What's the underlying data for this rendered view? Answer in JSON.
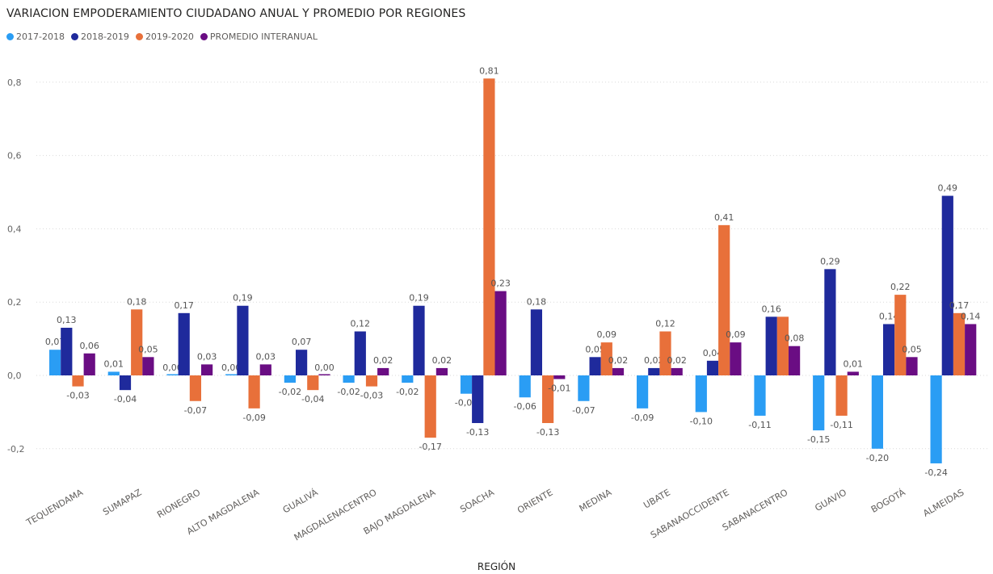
{
  "chart_data": {
    "type": "bar",
    "title": "VARIACION EMPODERAMIENTO CIUDADANO ANUAL Y PROMEDIO POR REGIONES",
    "xlabel": "REGIÓN",
    "ylabel": "",
    "ylim": [
      -0.3,
      0.85
    ],
    "yticks": [
      -0.2,
      0.0,
      0.2,
      0.4,
      0.6,
      0.8
    ],
    "ytick_labels": [
      "-0,2",
      "0,0",
      "0,2",
      "0,4",
      "0,6",
      "0,8"
    ],
    "grid": true,
    "legend_position": "top-left",
    "categories": [
      "TEQUENDAMA",
      "SUMAPAZ",
      "RIONEGRO",
      "ALTO MAGDALENA",
      "GUALIVÁ",
      "MAGDALENACENTRO",
      "BAJO MAGDALENA",
      "SOACHA",
      "ORIENTE",
      "MEDINA",
      "UBATE",
      "SABANAOCCIDENTE",
      "SABANACENTRO",
      "GUAVIO",
      "BOGOTÁ",
      "ALMEIDAS"
    ],
    "series": [
      {
        "name": "2017-2018",
        "color": "#2a9df4",
        "values": [
          0.07,
          0.01,
          0.0,
          0.0,
          -0.02,
          -0.02,
          -0.02,
          -0.05,
          -0.06,
          -0.07,
          -0.09,
          -0.1,
          -0.11,
          -0.15,
          -0.2,
          -0.24
        ],
        "labels": [
          "0,07",
          "0,01",
          "0,00",
          "0,00",
          "-0,02",
          "-0,02",
          "-0,02",
          "-0,05",
          "-0,06",
          "-0,07",
          "-0,09",
          "-0,10",
          "-0,11",
          "-0,15",
          "-0,20",
          "-0,24"
        ]
      },
      {
        "name": "2018-2019",
        "color": "#1f2a9c",
        "values": [
          0.13,
          -0.04,
          0.17,
          0.19,
          0.07,
          0.12,
          0.19,
          -0.13,
          0.18,
          0.05,
          0.02,
          0.04,
          0.16,
          0.29,
          0.14,
          0.49
        ],
        "labels": [
          "0,13",
          "-0,04",
          "0,17",
          "0,19",
          "0,07",
          "0,12",
          "0,19",
          "-0,13",
          "0,18",
          "0,05",
          "0,02",
          "0,04",
          "0,16",
          "0,29",
          "0,14",
          "0,49"
        ]
      },
      {
        "name": "2019-2020",
        "color": "#e8703a",
        "values": [
          -0.03,
          0.18,
          -0.07,
          -0.09,
          -0.04,
          -0.03,
          -0.17,
          0.81,
          -0.13,
          0.09,
          0.12,
          0.41,
          0.16,
          -0.11,
          0.22,
          0.17
        ],
        "labels": [
          "-0,03",
          "0,18",
          "-0,07",
          "-0,09",
          "-0,04",
          "-0,03",
          "-0,17",
          "0,81",
          "-0,13",
          "0,09",
          "0,12",
          "0,41",
          "",
          "-0,11",
          "0,22",
          "0,17"
        ]
      },
      {
        "name": "PROMEDIO INTERANUAL",
        "color": "#6a0d83",
        "values": [
          0.06,
          0.05,
          0.03,
          0.03,
          0.0,
          0.02,
          0.02,
          0.23,
          -0.01,
          0.02,
          0.02,
          0.09,
          0.08,
          0.01,
          0.05,
          0.14
        ],
        "labels": [
          "0,06",
          "0,05",
          "0,03",
          "0,03",
          "0,00",
          "0,02",
          "0,02",
          "0,23",
          "-0,01",
          "0,02",
          "0,02",
          "0,09",
          "0,08",
          "0,01",
          "0,05",
          "0,14"
        ]
      }
    ]
  }
}
